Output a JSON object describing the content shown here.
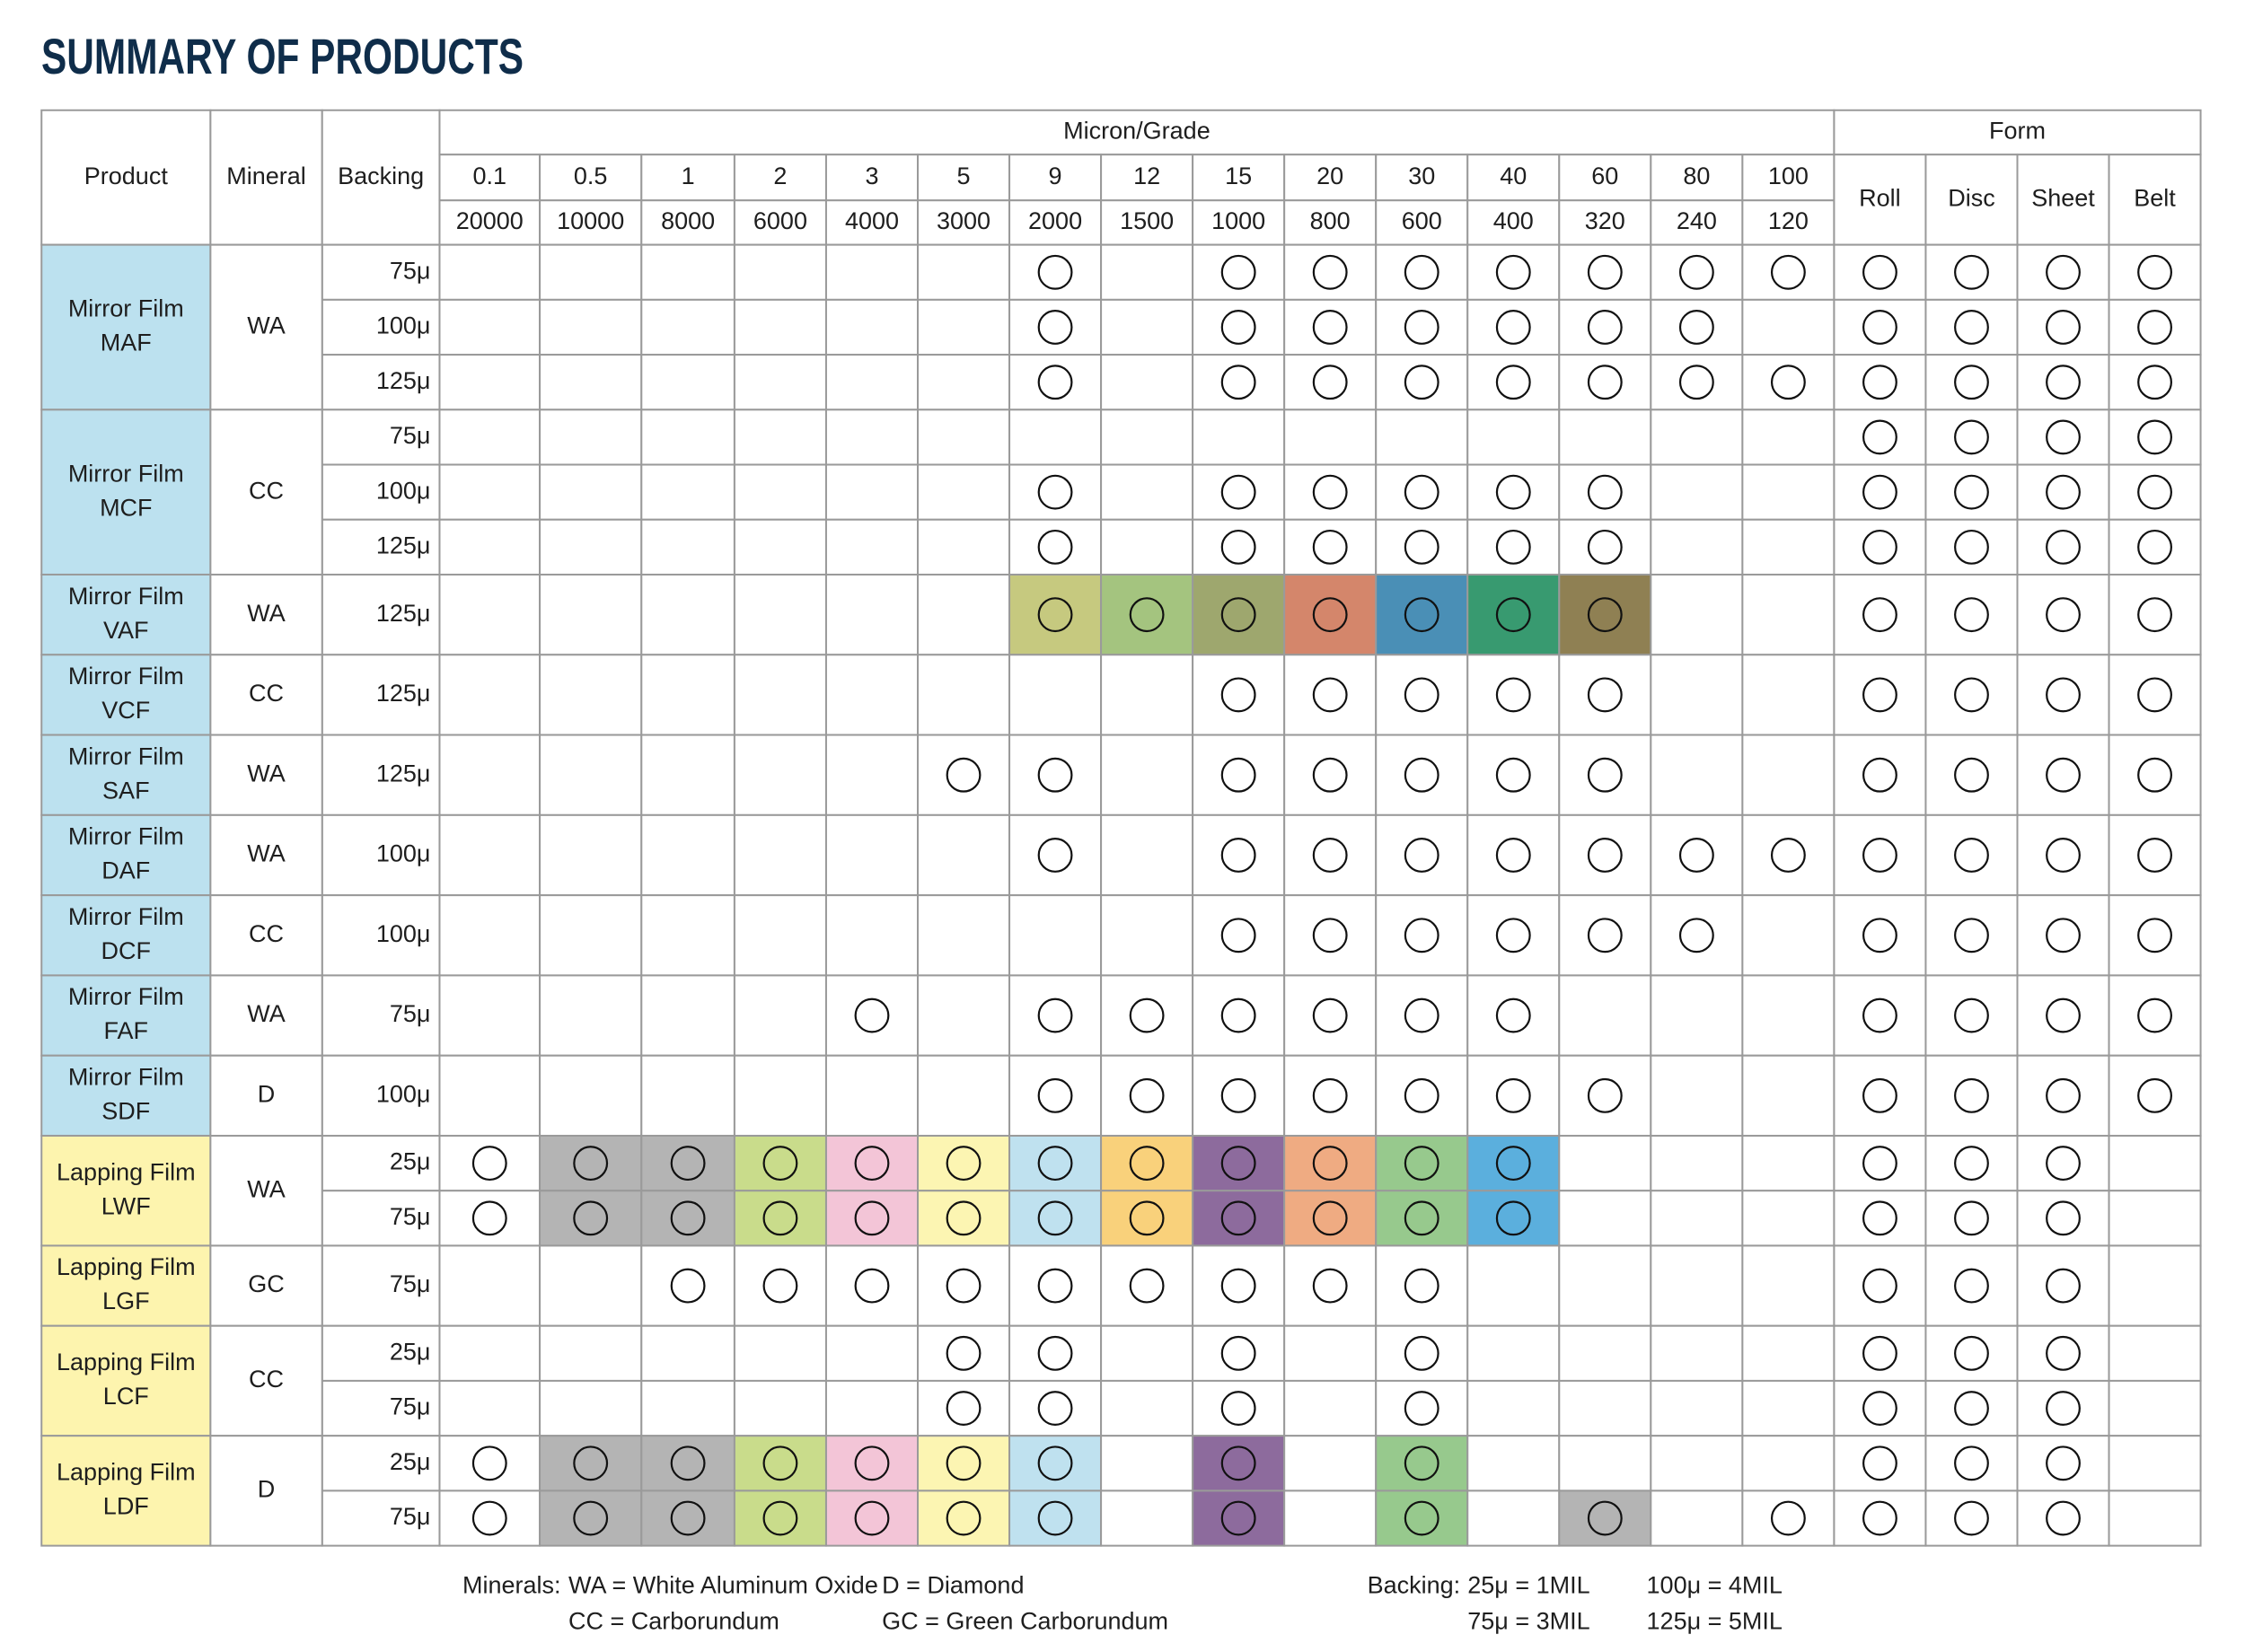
{
  "header": {
    "title": "SUMMARY OF PRODUCTS"
  },
  "table": {
    "column_headers": {
      "product": "Product",
      "mineral": "Mineral",
      "backing": "Backing",
      "micron_grade": "Micron/Grade",
      "form": "Form"
    },
    "microns": [
      0.1,
      0.5,
      1,
      2,
      3,
      5,
      9,
      12,
      15,
      20,
      30,
      40,
      60,
      80,
      100
    ],
    "grades": [
      20000,
      10000,
      8000,
      6000,
      4000,
      3000,
      2000,
      1500,
      1000,
      800,
      600,
      400,
      320,
      240,
      120
    ],
    "forms": [
      "Roll",
      "Disc",
      "Sheet",
      "Belt"
    ],
    "products": [
      {
        "name_lines": [
          "Mirror Film",
          "MAF"
        ],
        "color": "#bce1ef",
        "mineral": "WA",
        "rows": [
          {
            "backing": "75μ",
            "grades": [
              0,
              0,
              0,
              0,
              0,
              0,
              1,
              0,
              1,
              1,
              1,
              1,
              1,
              1,
              1
            ],
            "forms": [
              1,
              1,
              1,
              1
            ]
          },
          {
            "backing": "100μ",
            "grades": [
              0,
              0,
              0,
              0,
              0,
              0,
              1,
              0,
              1,
              1,
              1,
              1,
              1,
              1,
              0
            ],
            "forms": [
              1,
              1,
              1,
              1
            ]
          },
          {
            "backing": "125μ",
            "grades": [
              0,
              0,
              0,
              0,
              0,
              0,
              1,
              0,
              1,
              1,
              1,
              1,
              1,
              1,
              1
            ],
            "forms": [
              1,
              1,
              1,
              1
            ]
          }
        ]
      },
      {
        "name_lines": [
          "Mirror Film",
          "MCF"
        ],
        "color": "#bce1ef",
        "mineral": "CC",
        "rows": [
          {
            "backing": "75μ",
            "grades": [
              0,
              0,
              0,
              0,
              0,
              0,
              0,
              0,
              0,
              0,
              0,
              0,
              0,
              0,
              0
            ],
            "forms": [
              1,
              1,
              1,
              1
            ]
          },
          {
            "backing": "100μ",
            "grades": [
              0,
              0,
              0,
              0,
              0,
              0,
              1,
              0,
              1,
              1,
              1,
              1,
              1,
              0,
              0
            ],
            "forms": [
              1,
              1,
              1,
              1
            ]
          },
          {
            "backing": "125μ",
            "grades": [
              0,
              0,
              0,
              0,
              0,
              0,
              1,
              0,
              1,
              1,
              1,
              1,
              1,
              0,
              0
            ],
            "forms": [
              1,
              1,
              1,
              1
            ]
          }
        ]
      },
      {
        "name_lines": [
          "Mirror Film",
          "VAF"
        ],
        "color": "#bce1ef",
        "mineral": "WA",
        "rows": [
          {
            "backing": "125μ",
            "grades": [
              0,
              0,
              0,
              0,
              0,
              0,
              1,
              1,
              1,
              1,
              1,
              1,
              1,
              0,
              0
            ],
            "colors": [
              null,
              null,
              null,
              null,
              null,
              null,
              "#c6c97f",
              "#a4c47f",
              "#9ea76e",
              "#d4866b",
              "#4a8fb6",
              "#389a70",
              "#8f8053",
              null,
              null
            ],
            "forms": [
              1,
              1,
              1,
              1
            ]
          }
        ]
      },
      {
        "name_lines": [
          "Mirror Film",
          "VCF"
        ],
        "color": "#bce1ef",
        "mineral": "CC",
        "rows": [
          {
            "backing": "125μ",
            "grades": [
              0,
              0,
              0,
              0,
              0,
              0,
              0,
              0,
              1,
              1,
              1,
              1,
              1,
              0,
              0
            ],
            "forms": [
              1,
              1,
              1,
              1
            ]
          }
        ]
      },
      {
        "name_lines": [
          "Mirror Film",
          "SAF"
        ],
        "color": "#bce1ef",
        "mineral": "WA",
        "rows": [
          {
            "backing": "125μ",
            "grades": [
              0,
              0,
              0,
              0,
              0,
              1,
              1,
              0,
              1,
              1,
              1,
              1,
              1,
              0,
              0
            ],
            "forms": [
              1,
              1,
              1,
              1
            ]
          }
        ]
      },
      {
        "name_lines": [
          "Mirror Film",
          "DAF"
        ],
        "color": "#bce1ef",
        "mineral": "WA",
        "rows": [
          {
            "backing": "100μ",
            "grades": [
              0,
              0,
              0,
              0,
              0,
              0,
              1,
              0,
              1,
              1,
              1,
              1,
              1,
              1,
              1
            ],
            "forms": [
              1,
              1,
              1,
              1
            ]
          }
        ]
      },
      {
        "name_lines": [
          "Mirror Film",
          "DCF"
        ],
        "color": "#bce1ef",
        "mineral": "CC",
        "rows": [
          {
            "backing": "100μ",
            "grades": [
              0,
              0,
              0,
              0,
              0,
              0,
              0,
              0,
              1,
              1,
              1,
              1,
              1,
              1,
              0
            ],
            "forms": [
              1,
              1,
              1,
              1
            ]
          }
        ]
      },
      {
        "name_lines": [
          "Mirror Film",
          "FAF"
        ],
        "color": "#bce1ef",
        "mineral": "WA",
        "rows": [
          {
            "backing": "75μ",
            "grades": [
              0,
              0,
              0,
              0,
              1,
              0,
              1,
              1,
              1,
              1,
              1,
              1,
              0,
              0,
              0
            ],
            "forms": [
              1,
              1,
              1,
              1
            ]
          }
        ]
      },
      {
        "name_lines": [
          "Mirror Film",
          "SDF"
        ],
        "color": "#bce1ef",
        "mineral": "D",
        "rows": [
          {
            "backing": "100μ",
            "grades": [
              0,
              0,
              0,
              0,
              0,
              0,
              1,
              1,
              1,
              1,
              1,
              1,
              1,
              0,
              0
            ],
            "forms": [
              1,
              1,
              1,
              1
            ]
          }
        ]
      },
      {
        "name_lines": [
          "Lapping Film",
          "LWF"
        ],
        "color": "#fdf4ae",
        "mineral": "WA",
        "rows": [
          {
            "backing": "25μ",
            "grades": [
              1,
              1,
              1,
              1,
              1,
              1,
              1,
              1,
              1,
              1,
              1,
              1,
              0,
              0,
              0
            ],
            "colors": [
              null,
              "#b4b4b4",
              "#b4b4b4",
              "#c9dc8b",
              "#f3c5d7",
              "#fcf5b2",
              "#bfe1ef",
              "#f9d17b",
              "#8d6b9d",
              "#efab82",
              "#97c98d",
              "#5bafdd",
              null,
              null,
              null
            ],
            "forms": [
              1,
              1,
              1,
              0
            ]
          },
          {
            "backing": "75μ",
            "grades": [
              1,
              1,
              1,
              1,
              1,
              1,
              1,
              1,
              1,
              1,
              1,
              1,
              0,
              0,
              0
            ],
            "colors": [
              null,
              "#b4b4b4",
              "#b4b4b4",
              "#c9dc8b",
              "#f3c5d7",
              "#fcf5b2",
              "#bfe1ef",
              "#f9d17b",
              "#8d6b9d",
              "#efab82",
              "#97c98d",
              "#5bafdd",
              null,
              null,
              null
            ],
            "forms": [
              1,
              1,
              1,
              0
            ]
          }
        ]
      },
      {
        "name_lines": [
          "Lapping Film",
          "LGF"
        ],
        "color": "#fdf4ae",
        "mineral": "GC",
        "rows": [
          {
            "backing": "75μ",
            "grades": [
              0,
              0,
              1,
              1,
              1,
              1,
              1,
              1,
              1,
              1,
              1,
              0,
              0,
              0,
              0
            ],
            "forms": [
              1,
              1,
              1,
              0
            ]
          }
        ]
      },
      {
        "name_lines": [
          "Lapping Film",
          "LCF"
        ],
        "color": "#fdf4ae",
        "mineral": "CC",
        "rows": [
          {
            "backing": "25μ",
            "grades": [
              0,
              0,
              0,
              0,
              0,
              1,
              1,
              0,
              1,
              0,
              1,
              0,
              0,
              0,
              0
            ],
            "forms": [
              1,
              1,
              1,
              0
            ]
          },
          {
            "backing": "75μ",
            "grades": [
              0,
              0,
              0,
              0,
              0,
              1,
              1,
              0,
              1,
              0,
              1,
              0,
              0,
              0,
              0
            ],
            "forms": [
              1,
              1,
              1,
              0
            ]
          }
        ]
      },
      {
        "name_lines": [
          "Lapping Film",
          "LDF"
        ],
        "color": "#fdf4ae",
        "mineral": "D",
        "rows": [
          {
            "backing": "25μ",
            "grades": [
              1,
              1,
              1,
              1,
              1,
              1,
              1,
              0,
              1,
              0,
              1,
              0,
              0,
              0,
              0
            ],
            "colors": [
              null,
              "#b4b4b4",
              "#b4b4b4",
              "#c9dc8b",
              "#f3c5d7",
              "#fcf5b2",
              "#bfe1ef",
              null,
              "#8d6b9d",
              null,
              "#97c98d",
              null,
              null,
              null,
              null
            ],
            "forms": [
              1,
              1,
              1,
              0
            ]
          },
          {
            "backing": "75μ",
            "grades": [
              1,
              1,
              1,
              1,
              1,
              1,
              1,
              0,
              1,
              0,
              1,
              0,
              1,
              0,
              1
            ],
            "colors": [
              null,
              "#b4b4b4",
              "#b4b4b4",
              "#c9dc8b",
              "#f3c5d7",
              "#fcf5b2",
              "#bfe1ef",
              null,
              "#8d6b9d",
              null,
              "#97c98d",
              null,
              "#b4b4b4",
              null,
              null
            ],
            "forms": [
              1,
              1,
              1,
              0
            ]
          }
        ]
      }
    ]
  },
  "legend": {
    "minerals_label": "Minerals:",
    "minerals": [
      "WA = White Aluminum Oxide",
      "D = Diamond",
      "CC = Carborundum",
      "GC = Green Carborundum"
    ],
    "backing_label": "Backing:",
    "backings": [
      "25μ = 1MIL",
      "100μ = 4MIL",
      "75μ = 3MIL",
      "125μ = 5MIL"
    ]
  }
}
